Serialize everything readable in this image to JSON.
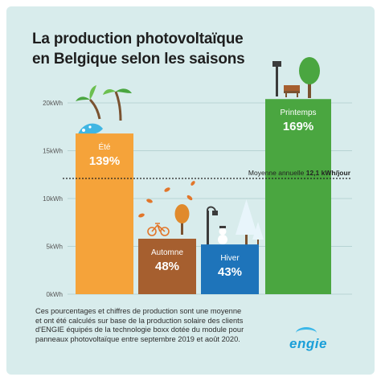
{
  "title_lines": [
    "La production photovoltaïque",
    "en Belgique selon les saisons"
  ],
  "chart_data": {
    "type": "bar",
    "title": "La production photovoltaïque en Belgique selon les saisons",
    "ylabel": "",
    "xlabel": "",
    "ylim": [
      0,
      20
    ],
    "yticks": [
      0,
      5,
      10,
      15,
      20
    ],
    "ytick_labels": [
      "0kWh",
      "5kWh",
      "10kWh",
      "15kWh",
      "20kWh"
    ],
    "grid": true,
    "categories": [
      "Été",
      "Automne",
      "Hiver",
      "Printemps"
    ],
    "values": [
      16.8,
      5.8,
      5.2,
      20.4
    ],
    "labels": [
      {
        "season": "Été",
        "percent": "139%"
      },
      {
        "season": "Automne",
        "percent": "48%"
      },
      {
        "season": "Hiver",
        "percent": "43%"
      },
      {
        "season": "Printemps",
        "percent": "169%"
      }
    ],
    "colors": [
      "#f5a33a",
      "#a65f2f",
      "#1e74ba",
      "#4aa640"
    ],
    "reference_line": {
      "value": 12.1,
      "label_prefix": "Moyenne annuelle ",
      "label_value": "12,1 kWh/jour"
    }
  },
  "footnote_lines": [
    "Ces pourcentages et chiffres de production sont une moyenne",
    "et ont été calculés sur base de la production solaire des clients",
    "d'ENGIE équipés de la technologie boxx dotée du module pour",
    "panneaux photovoltaïque entre septembre 2019 et août 2020."
  ],
  "logo": "engie",
  "icons": [
    "palm-tree-icon",
    "leaf-icon",
    "bicycle-icon",
    "street-lamp-icon",
    "snowman-icon",
    "snowy-tree-icon",
    "bench-icon",
    "tree-icon"
  ]
}
